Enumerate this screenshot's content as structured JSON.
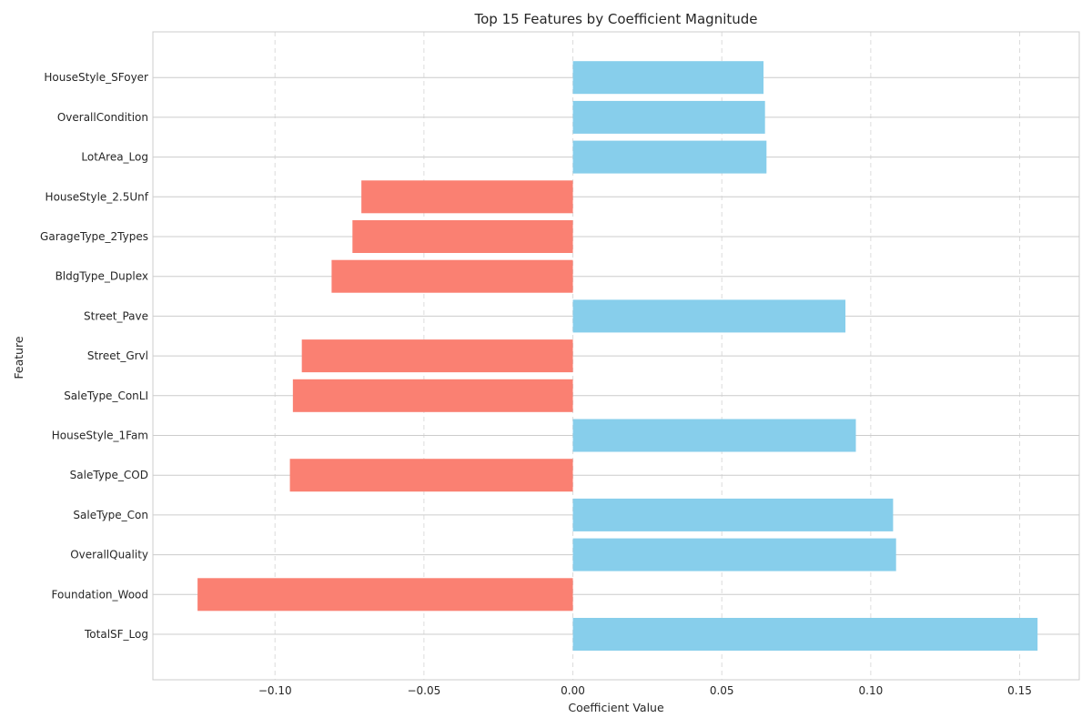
{
  "chart_data": {
    "type": "bar",
    "orientation": "horizontal",
    "title": "Top 15 Features by Coefficient Magnitude",
    "xlabel": "Coefficient Value",
    "ylabel": "Feature",
    "xlim": [
      -0.141,
      0.17
    ],
    "xticks": [
      -0.1,
      -0.05,
      0.0,
      0.05,
      0.1,
      0.15
    ],
    "xtick_labels": [
      "−0.10",
      "−0.05",
      "0.00",
      "0.05",
      "0.10",
      "0.15"
    ],
    "grid": true,
    "categories": [
      "TotalSF_Log",
      "Foundation_Wood",
      "OverallQuality",
      "SaleType_Con",
      "SaleType_COD",
      "HouseStyle_1Fam",
      "SaleType_ConLI",
      "Street_Grvl",
      "Street_Pave",
      "BldgType_Duplex",
      "GarageType_2Types",
      "HouseStyle_2.5Unf",
      "LotArea_Log",
      "OverallCondition",
      "HouseStyle_SFoyer"
    ],
    "values": [
      0.156,
      -0.126,
      0.1085,
      0.1075,
      -0.095,
      0.095,
      -0.094,
      -0.091,
      0.0915,
      -0.081,
      -0.074,
      -0.071,
      0.065,
      0.0645,
      0.064
    ],
    "colors": {
      "positive": "#87ceeb",
      "negative": "#fa8072"
    }
  }
}
